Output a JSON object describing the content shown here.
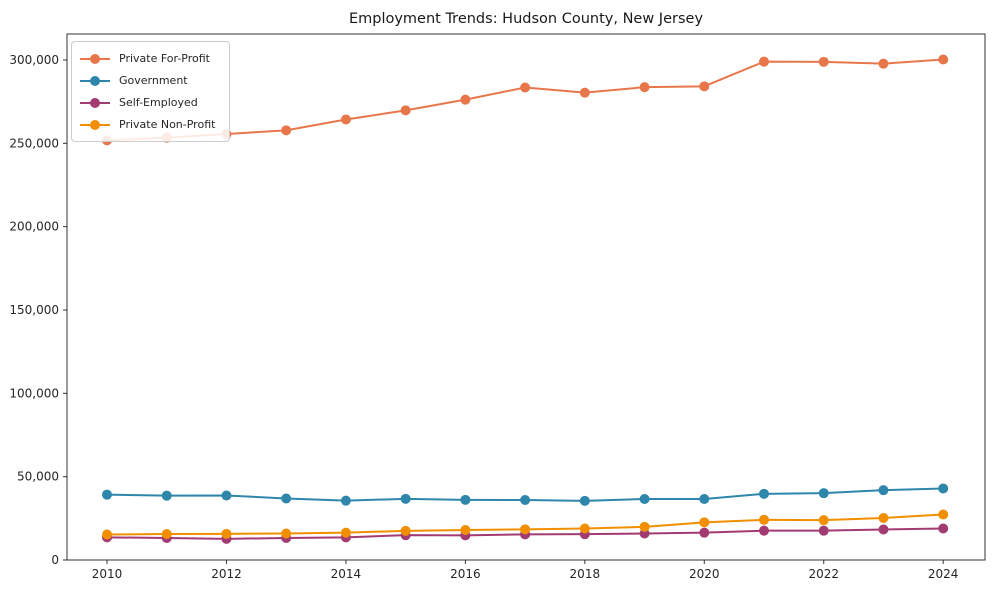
{
  "chart_data": {
    "type": "line",
    "title": "Employment Trends: Hudson County, New Jersey",
    "xlabel": "",
    "ylabel": "",
    "x": [
      2010,
      2011,
      2012,
      2013,
      2014,
      2015,
      2016,
      2017,
      2018,
      2019,
      2020,
      2021,
      2022,
      2023,
      2024
    ],
    "series": [
      {
        "name": "Private For-Profit",
        "color": "#E8764B",
        "values": [
          251800,
          253400,
          255600,
          257800,
          264300,
          269800,
          276200,
          283500,
          280400,
          283700,
          284200,
          299000,
          298900,
          297800,
          300300
        ]
      },
      {
        "name": "Government",
        "color": "#2E86AB",
        "values": [
          39200,
          38600,
          38700,
          36900,
          35600,
          36700,
          36100,
          36000,
          35500,
          36600,
          36600,
          39700,
          40100,
          41900,
          42900
        ]
      },
      {
        "name": "Self-Employed",
        "color": "#A23B72",
        "values": [
          13600,
          13200,
          12700,
          13200,
          13600,
          14900,
          14800,
          15400,
          15500,
          15900,
          16400,
          17600,
          17600,
          18300,
          18900
        ]
      },
      {
        "name": "Private Non-Profit",
        "color": "#F18F01",
        "values": [
          15300,
          15600,
          15700,
          15900,
          16400,
          17500,
          18000,
          18400,
          18900,
          19900,
          22600,
          24100,
          23900,
          25200,
          27300
        ]
      }
    ],
    "xtick_labels": [
      "2010",
      "2012",
      "2014",
      "2016",
      "2018",
      "2020",
      "2022",
      "2024"
    ],
    "xtick_values": [
      2010,
      2012,
      2014,
      2016,
      2018,
      2020,
      2022,
      2024
    ],
    "ytick_labels": [
      "0",
      "50,000",
      "100,000",
      "150,000",
      "200,000",
      "250,000",
      "300,000"
    ],
    "ytick_values": [
      0,
      50000,
      100000,
      150000,
      200000,
      250000,
      300000
    ],
    "xlim": [
      2009.33,
      2024.7
    ],
    "ylim": [
      0,
      315600
    ],
    "grid": false,
    "legend_position": "upper-left",
    "axis_color": "#333333",
    "marker_radius": 5,
    "line_width": 2
  }
}
